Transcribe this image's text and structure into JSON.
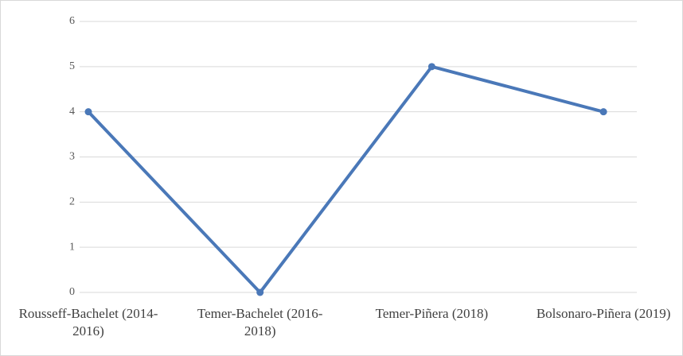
{
  "chart_data": {
    "type": "line",
    "categories": [
      "Rousseff-Bachelet (2014-2016)",
      "Temer-Bachelet (2016-2018)",
      "Temer-Piñera (2018)",
      "Bolsonaro-Piñera (2019)"
    ],
    "series": [
      {
        "color": "#4a78b8",
        "values": [
          4,
          0,
          5,
          4
        ]
      }
    ],
    "ylim": [
      0,
      6
    ],
    "yticks": [
      0,
      1,
      2,
      3,
      4,
      5,
      6
    ],
    "grid": true
  }
}
